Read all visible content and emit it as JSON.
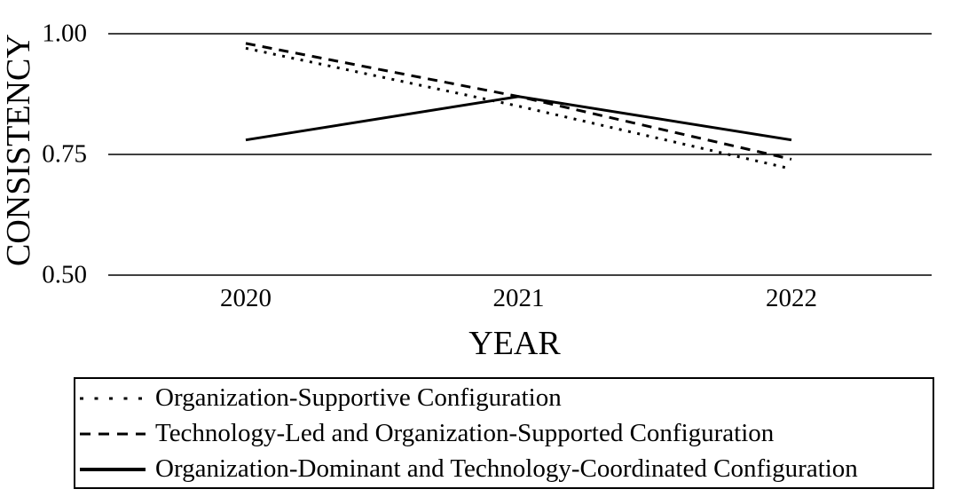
{
  "chart_data": {
    "type": "line",
    "title": "",
    "x": [
      2020,
      2021,
      2022
    ],
    "xticks": [
      "2020",
      "2021",
      "2022"
    ],
    "xlabel": "YEAR",
    "ylabel": "CONSISTENCY",
    "ylim": [
      0.5,
      1.0
    ],
    "yticks": [
      {
        "label": "1.00",
        "value": 1.0
      },
      {
        "label": "0.75",
        "value": 0.75
      },
      {
        "label": "0.50",
        "value": 0.5
      }
    ],
    "grid": "horizontal-only",
    "legend_position": "bottom-box",
    "background_color": "#ffffff",
    "line_color": "#000000",
    "series": [
      {
        "name": "Organization-Supportive Configuration",
        "style": "dotted",
        "values": [
          0.97,
          0.85,
          0.72
        ]
      },
      {
        "name": "Technology-Led and Organization-Supported Configuration",
        "style": "dashed",
        "values": [
          0.98,
          0.87,
          0.74
        ]
      },
      {
        "name": "Organization-Dominant and Technology-Coordinated Configuration",
        "style": "solid",
        "values": [
          0.78,
          0.87,
          0.78
        ]
      }
    ]
  }
}
